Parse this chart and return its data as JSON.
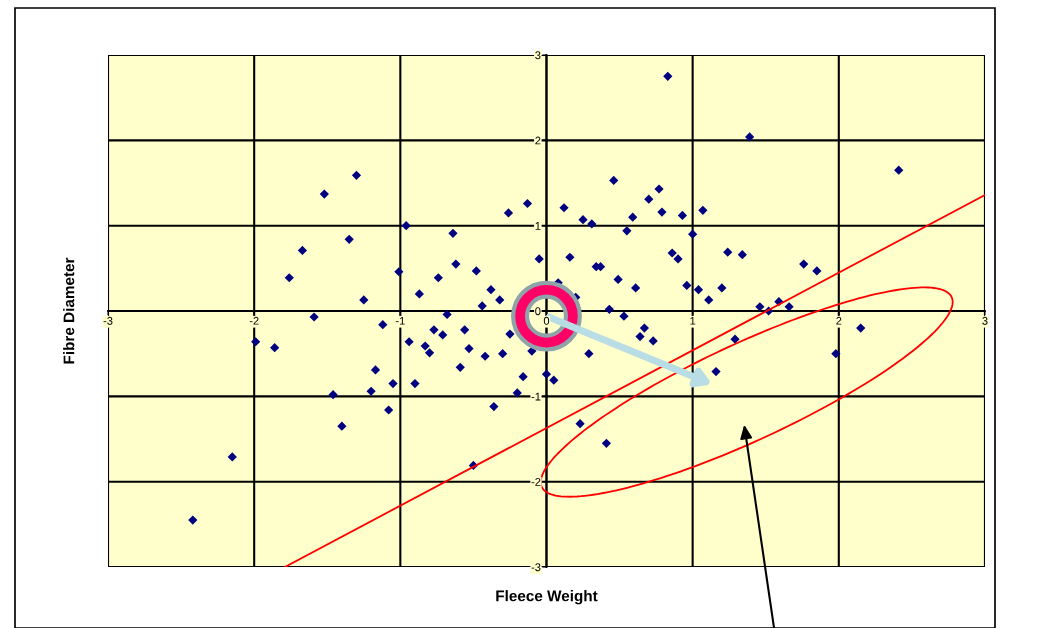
{
  "chart_data": {
    "type": "scatter",
    "xlabel": "Fleece Weight",
    "ylabel": "Fibre Diameter",
    "xlim": [
      -3,
      3
    ],
    "ylim": [
      -3,
      3
    ],
    "xticks": [
      -3,
      -2,
      -1,
      0,
      1,
      2,
      3
    ],
    "yticks": [
      -3,
      -2,
      -1,
      0,
      1,
      2,
      3
    ],
    "grid": true,
    "series": [
      {
        "color": "#000080",
        "marker": "diamond",
        "x": [
          -1.3,
          -1.52,
          -0.96,
          -0.64,
          -0.13,
          -0.26,
          -0.05,
          -1.35,
          -1.67,
          -1.76,
          -1.25,
          -1.01,
          -0.62,
          -0.48,
          -0.74,
          -0.87,
          -0.38,
          -0.32,
          -0.44,
          -0.68,
          -1.59,
          0.83,
          1.39,
          2.41,
          0.46,
          0.77,
          0.7,
          0.79,
          0.59,
          0.93,
          1.07,
          0.12,
          0.25,
          0.31,
          0.55,
          1.0,
          0.16,
          0.34,
          0.37,
          0.86,
          0.9,
          0.49,
          0.61,
          0.08,
          0.2,
          0.43,
          0.53,
          0.96,
          1.04,
          1.11,
          1.2,
          1.24,
          1.34,
          1.76,
          1.85,
          1.46,
          1.52,
          1.59,
          1.66,
          -1.12,
          -1.99,
          -1.86,
          -0.94,
          -0.77,
          -0.71,
          -0.56,
          -0.83,
          -0.8,
          -0.53,
          -0.42,
          -0.3,
          -0.59,
          -1.17,
          -1.05,
          -0.9,
          -1.2,
          -1.46,
          -1.08,
          -1.4,
          -0.36,
          -0.2,
          -0.16,
          0.0,
          -0.1,
          -0.25,
          -2.15,
          -2.42,
          -0.5,
          0.67,
          0.64,
          0.73,
          0.29,
          0.05,
          1.29,
          1.16,
          2.15,
          1.98,
          0.23,
          0.41
        ],
        "values": [
          1.59,
          1.37,
          1.0,
          0.91,
          1.26,
          1.15,
          0.61,
          0.84,
          0.71,
          0.39,
          0.13,
          0.46,
          0.55,
          0.47,
          0.39,
          0.2,
          0.25,
          0.13,
          0.06,
          -0.04,
          -0.07,
          2.75,
          2.04,
          1.65,
          1.53,
          1.43,
          1.31,
          1.16,
          1.1,
          1.12,
          1.18,
          1.21,
          1.07,
          1.02,
          0.94,
          0.9,
          0.63,
          0.52,
          0.52,
          0.68,
          0.61,
          0.37,
          0.27,
          0.33,
          0.16,
          0.02,
          -0.06,
          0.3,
          0.25,
          0.13,
          0.27,
          0.69,
          0.66,
          0.55,
          0.47,
          0.05,
          0.0,
          0.11,
          0.05,
          -0.16,
          -0.36,
          -0.43,
          -0.36,
          -0.22,
          -0.28,
          -0.22,
          -0.41,
          -0.49,
          -0.44,
          -0.53,
          -0.5,
          -0.66,
          -0.69,
          -0.85,
          -0.85,
          -0.94,
          -0.98,
          -1.16,
          -1.35,
          -1.12,
          -0.96,
          -0.77,
          -0.74,
          -0.47,
          -0.27,
          -1.71,
          -2.45,
          -1.81,
          -0.2,
          -0.3,
          -0.35,
          -0.5,
          -0.81,
          -0.33,
          -0.71,
          -0.2,
          -0.5,
          -1.32,
          -1.55
        ]
      },
      {
        "type": "line",
        "color": "#ff0000",
        "x": [
          -1.79,
          3
        ],
        "values": [
          -3,
          1.36
        ]
      }
    ]
  }
}
